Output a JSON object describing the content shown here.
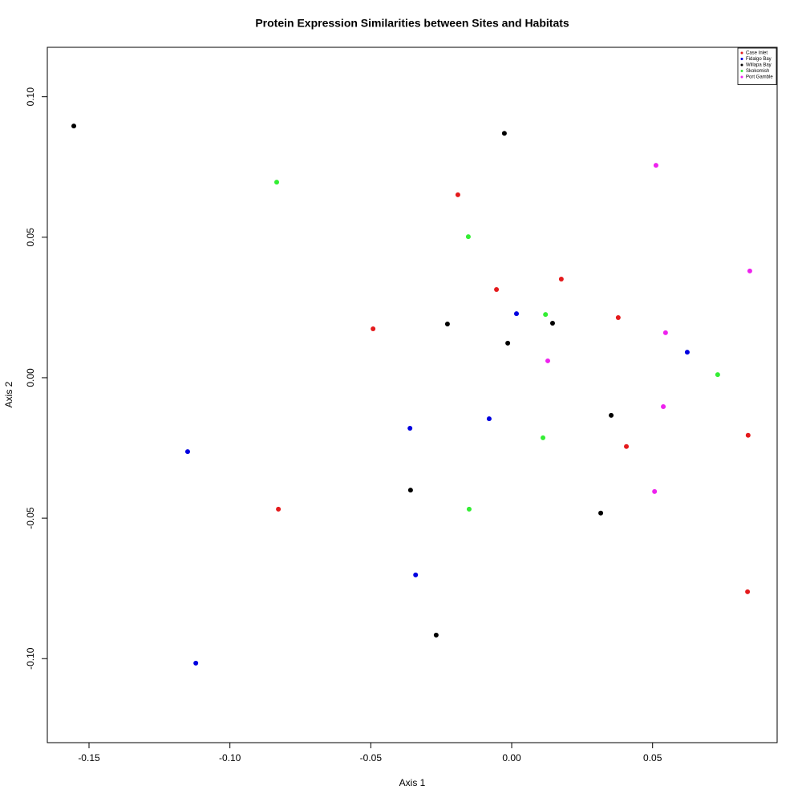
{
  "chart_data": {
    "type": "scatter",
    "title": "Protein Expression Similarities between Sites and Habitats",
    "x_label": "Axis 1",
    "y_label": "Axis 2",
    "xlim": [
      -0.1648,
      0.0942
    ],
    "ylim": [
      -0.1299,
      0.1176
    ],
    "xticks": [
      -0.15,
      {
        "value": -0.1,
        "label": "-0.10"
      },
      -0.05,
      {
        "value": 0,
        "label": "0.00"
      },
      0.05
    ],
    "yticks": [
      {
        "value": -0.1,
        "label": "-0.10"
      },
      -0.05,
      {
        "value": 0,
        "label": "0.00"
      },
      0.05,
      {
        "value": 0.1,
        "label": "0.10"
      }
    ],
    "legend": "top-right",
    "series": [
      {
        "name": "Case Inlet",
        "color": "#e41a1c",
        "x": [
          -0.0191,
          -0.0054,
          0.0176,
          -0.0492,
          0.0378,
          0.0839,
          0.0407,
          -0.0828,
          0.0837
        ],
        "y": [
          0.0651,
          0.0314,
          0.0351,
          0.0174,
          0.0214,
          -0.0205,
          -0.0245,
          -0.0468,
          -0.0762
        ]
      },
      {
        "name": "Fidalgo Bay",
        "color": "#0000e0",
        "x": [
          0.0017,
          0.0623,
          -0.008,
          -0.0361,
          -0.115,
          -0.0341,
          -0.1121
        ],
        "y": [
          0.0228,
          0.0091,
          -0.0146,
          -0.018,
          -0.0263,
          -0.0702,
          -0.1016
        ]
      },
      {
        "name": "Willapa Bay",
        "color": "#000000",
        "x": [
          -0.1554,
          -0.0026,
          -0.0228,
          0.0145,
          -0.0014,
          0.0353,
          -0.0359,
          0.0316,
          -0.0268
        ],
        "y": [
          0.0896,
          0.087,
          0.0191,
          0.0194,
          0.0123,
          -0.0134,
          -0.04,
          -0.0482,
          -0.0916
        ]
      },
      {
        "name": "Skokomish",
        "color": "#33ee33",
        "x": [
          -0.0834,
          -0.0154,
          0.012,
          0.0731,
          0.0111,
          -0.0151
        ],
        "y": [
          0.0696,
          0.0502,
          0.0225,
          0.0011,
          -0.0214,
          -0.0468
        ]
      },
      {
        "name": "Port Gamble",
        "color": "#ee22ee",
        "x": [
          0.0512,
          0.0845,
          0.0546,
          0.0128,
          0.0538,
          0.0507
        ],
        "y": [
          0.0756,
          0.038,
          0.016,
          0.006,
          -0.0103,
          -0.0405
        ]
      }
    ]
  }
}
